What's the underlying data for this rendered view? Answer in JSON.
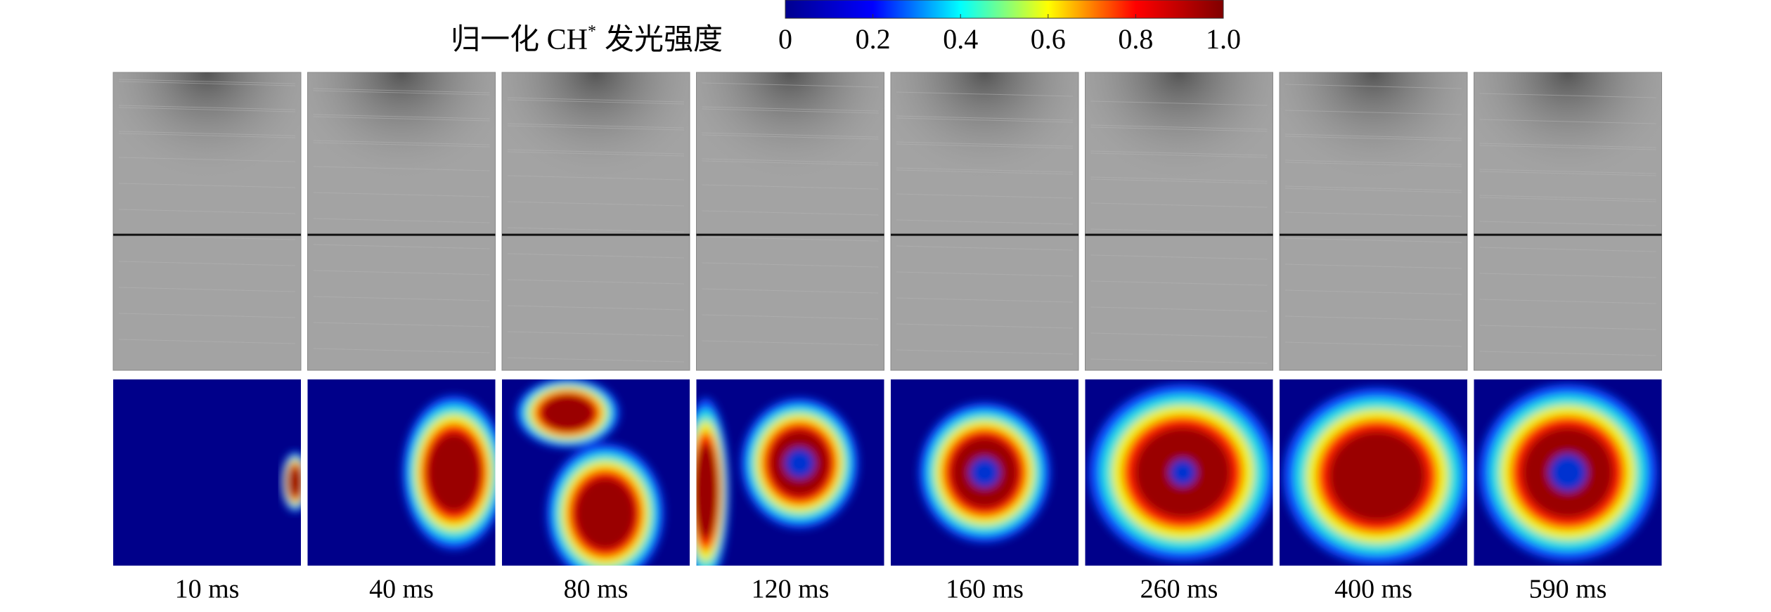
{
  "figure": {
    "colorbar": {
      "label": {
        "main": "归一化 CH",
        "sup": "*",
        "rest": "发光强度"
      },
      "colormap": [
        "#00008f",
        "#0000ff",
        "#00ffff",
        "#ffff00",
        "#ff0000",
        "#800000"
      ],
      "range": [
        0,
        1
      ],
      "ticks": [
        0,
        0.2,
        0.4,
        0.6,
        0.8,
        {
          "value": 1,
          "label": "1.0"
        }
      ]
    },
    "times": [
      "10 ms",
      "40 ms",
      "80 ms",
      "120 ms",
      "160 ms",
      "260 ms",
      "400 ms",
      "590 ms"
    ]
  }
}
